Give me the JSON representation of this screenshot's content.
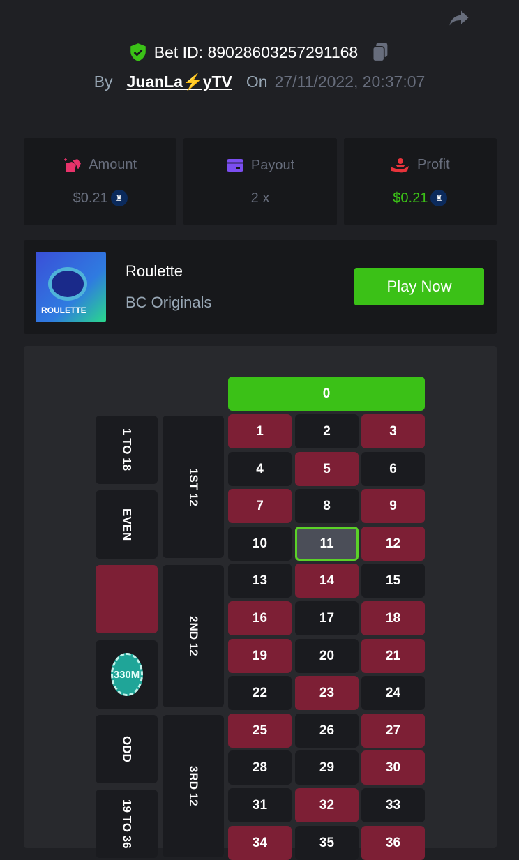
{
  "header": {
    "bet_id_label": "Bet ID: 89028603257291168",
    "by_label": "By",
    "username": "JuanLa⚡yTV",
    "on_label": "On",
    "datetime": "27/11/2022, 20:37:07"
  },
  "stats": [
    {
      "label": "Amount",
      "value": "$0.21",
      "icon": "bet-amount-icon",
      "icon_color": "#e8336b",
      "value_color": "#676d7c"
    },
    {
      "label": "Payout",
      "value": "2 x",
      "icon": "wallet-icon",
      "icon_color": "#7b4ef0",
      "value_color": "#676d7c"
    },
    {
      "label": "Profit",
      "value": "$0.21",
      "icon": "profit-hand-icon",
      "icon_color": "#e8333b",
      "value_color": "#3bc117"
    }
  ],
  "game": {
    "thumb_text": "ROULETTE",
    "name": "Roulette",
    "provider": "BC Originals",
    "play_label": "Play Now"
  },
  "board": {
    "zero": "0",
    "rows": [
      [
        "1",
        "2",
        "3"
      ],
      [
        "4",
        "5",
        "6"
      ],
      [
        "7",
        "8",
        "9"
      ],
      [
        "10",
        "11",
        "12"
      ],
      [
        "13",
        "14",
        "15"
      ],
      [
        "16",
        "17",
        "18"
      ],
      [
        "19",
        "20",
        "21"
      ],
      [
        "22",
        "23",
        "24"
      ],
      [
        "25",
        "26",
        "27"
      ],
      [
        "28",
        "29",
        "30"
      ],
      [
        "31",
        "32",
        "33"
      ],
      [
        "34",
        "35",
        "36"
      ]
    ],
    "red_numbers": [
      "1",
      "3",
      "5",
      "7",
      "9",
      "12",
      "14",
      "16",
      "18",
      "19",
      "21",
      "23",
      "25",
      "27",
      "30",
      "32",
      "34",
      "36"
    ],
    "selected": "11",
    "dozens": [
      "1ST 12",
      "2ND 12",
      "3RD 12"
    ],
    "outside": [
      "1 TO 18",
      "EVEN",
      "",
      "",
      "ODD",
      "19 TO 36"
    ],
    "chip_label": "330M",
    "colors": {
      "red": "#7d1f35",
      "black": "#1a1b1f",
      "green": "#3bc117"
    }
  }
}
